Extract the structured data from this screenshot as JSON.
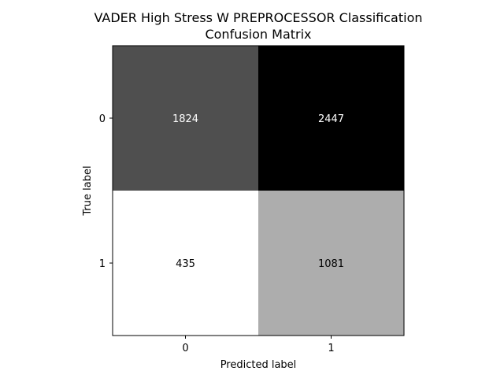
{
  "chart_data": {
    "type": "heatmap",
    "title_line1": "VADER High Stress W PREPROCESSOR Classification",
    "title_line2": "Confusion Matrix",
    "xlabel": "Predicted label",
    "ylabel": "True label",
    "x_ticks": [
      "0",
      "1"
    ],
    "y_ticks": [
      "0",
      "1"
    ],
    "matrix": [
      [
        1824,
        2447
      ],
      [
        435,
        1081
      ]
    ],
    "matrix_labels": [
      [
        "1824",
        "2447"
      ],
      [
        "435",
        "1081"
      ]
    ],
    "colormap": "gray_r",
    "value_range": [
      435,
      2447
    ],
    "grid": false
  }
}
